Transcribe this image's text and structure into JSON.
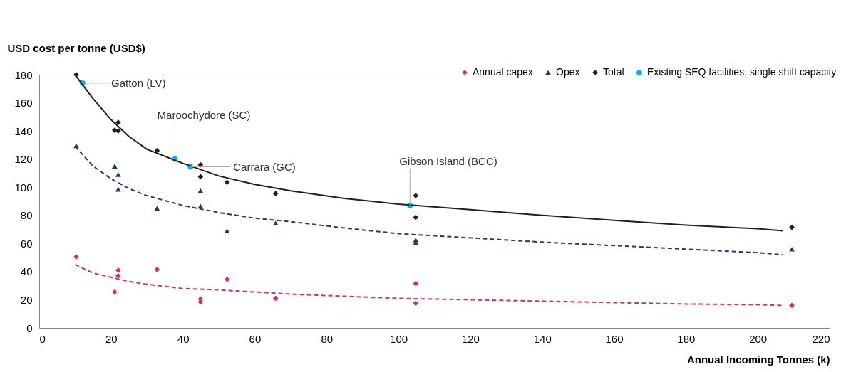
{
  "chart_data": {
    "type": "scatter",
    "xlabel": "Annual Incoming Tonnes (k)",
    "ylabel": "USD cost per tonne (USD$)",
    "xlim": [
      0,
      220
    ],
    "xticks": [
      0,
      20,
      40,
      60,
      80,
      100,
      120,
      140,
      160,
      180,
      200,
      220
    ],
    "ylim": [
      0,
      180
    ],
    "yticks": [
      0,
      20,
      40,
      60,
      80,
      100,
      120,
      140,
      160,
      180
    ],
    "grid": false,
    "legend": "top right",
    "series": [
      {
        "name": "Annual capex",
        "color": "#d0335e",
        "marker": "diamond",
        "x": [
          10.3,
          21,
          22,
          22,
          32.8,
          44.9,
          44.9,
          52.3,
          65.8,
          104.8,
          104.8,
          209.5
        ],
        "values": [
          50.5,
          25.5,
          41,
          37,
          41.5,
          20.5,
          18.5,
          34.5,
          21,
          31.5,
          17.5,
          16
        ]
      },
      {
        "name": "Opex",
        "color": "#1f3d6b",
        "marker": "triangle",
        "x": [
          10.3,
          21,
          22,
          22,
          32.8,
          44.9,
          44.9,
          52.3,
          65.8,
          104.8,
          104.8,
          209.5
        ],
        "values": [
          129.5,
          115,
          109,
          98.5,
          85,
          97.5,
          86.5,
          69,
          74.5,
          62.5,
          60.5,
          56
        ]
      },
      {
        "name": "Total",
        "color": "#231f20",
        "marker": "diamond",
        "x": [
          10.3,
          21,
          22,
          22,
          32.8,
          44.9,
          44.9,
          52.3,
          65.8,
          104.8,
          104.8,
          209.5
        ],
        "values": [
          180,
          140.5,
          146,
          140,
          126,
          116,
          107.5,
          103.5,
          95.5,
          94,
          78.5,
          71.5
        ]
      },
      {
        "name": "Existing SEQ facilities, single shift capacity",
        "color": "#00b0f0",
        "marker": "circle",
        "x": [
          12.1,
          37.8,
          42.1,
          103.2
        ],
        "values": [
          174,
          120,
          114.5,
          87
        ]
      },
      {
        "type": "line",
        "color": "#231f20",
        "line_style": "solid",
        "x": [
          10,
          12,
          15,
          20,
          25,
          30,
          40,
          50,
          60,
          70,
          85,
          100,
          120,
          140,
          160,
          180,
          200,
          207
        ],
        "values": [
          180,
          173,
          163,
          148,
          136,
          127,
          117,
          108,
          102,
          97.5,
          92,
          88,
          84,
          80,
          76.5,
          73,
          70.5,
          69
        ]
      },
      {
        "type": "line",
        "color": "#1f3d6b",
        "line_style": "dashed",
        "x": [
          10,
          15,
          20,
          25,
          30,
          40,
          50,
          60,
          70,
          85,
          100,
          120,
          140,
          160,
          180,
          200,
          207
        ],
        "values": [
          129,
          115,
          106,
          99,
          94,
          87,
          82,
          78,
          75.5,
          71,
          67,
          64,
          61,
          58.5,
          56,
          53.5,
          52
        ]
      },
      {
        "type": "line",
        "color": "#d0335e",
        "line_style": "dashed",
        "x": [
          10,
          15,
          20,
          25,
          30,
          40,
          50,
          60,
          70,
          85,
          100,
          120,
          140,
          160,
          180,
          200,
          207
        ],
        "values": [
          45,
          39,
          36,
          33,
          31,
          28,
          27,
          25.5,
          24,
          22.5,
          21,
          20,
          19,
          18,
          17,
          16.5,
          16
        ]
      }
    ],
    "annotations": [
      {
        "text": "Gatton (LV)",
        "x": 12.1,
        "y": 174
      },
      {
        "text": "Maroochydore (SC)",
        "x": 37.8,
        "y": 120
      },
      {
        "text": "Carrara (GC)",
        "x": 42.1,
        "y": 114.5
      },
      {
        "text": "Gibson Island (BCC)",
        "x": 103.2,
        "y": 87
      }
    ]
  }
}
